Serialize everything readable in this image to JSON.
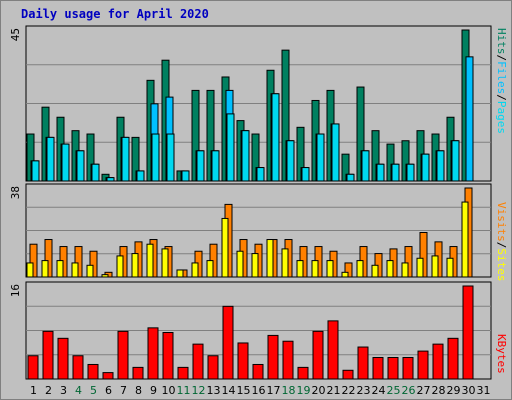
{
  "title": "Daily usage for April 2020",
  "colors": {
    "hits": "#008060",
    "files": "#00c0ff",
    "pages": "#00d8f0",
    "visits": "#ff8000",
    "sites": "#ffff00",
    "kbytes": "#ff0000",
    "weekend": "#006633",
    "weekday": "#000000"
  },
  "chart_data": [
    {
      "type": "bar",
      "panel": "hits-files-pages",
      "scale_max_label": "45",
      "ylim": [
        0,
        45
      ],
      "legend": [
        "Pages",
        "/",
        "Files",
        "/",
        "Hits"
      ],
      "categories": [
        "1",
        "2",
        "3",
        "4",
        "5",
        "6",
        "7",
        "8",
        "9",
        "10",
        "11",
        "12",
        "13",
        "14",
        "15",
        "16",
        "17",
        "18",
        "19",
        "20",
        "21",
        "22",
        "23",
        "24",
        "25",
        "26",
        "27",
        "28",
        "29",
        "30",
        "31"
      ],
      "weekend_days": [
        "4",
        "5",
        "11",
        "12",
        "18",
        "19",
        "25",
        "26"
      ],
      "series": [
        {
          "name": "Hits",
          "values": [
            14,
            22,
            19,
            15,
            14,
            2,
            19,
            13,
            30,
            36,
            3,
            27,
            27,
            31,
            18,
            14,
            33,
            39,
            16,
            24,
            27,
            8,
            28,
            15,
            11,
            12,
            15,
            14,
            19,
            45,
            0
          ]
        },
        {
          "name": "Files",
          "values": [
            6,
            13,
            11,
            9,
            5,
            1,
            13,
            3,
            23,
            25,
            3,
            9,
            9,
            27,
            15,
            4,
            26,
            12,
            4,
            14,
            17,
            2,
            9,
            5,
            5,
            5,
            8,
            9,
            12,
            37,
            0
          ]
        },
        {
          "name": "Pages",
          "values": [
            6,
            13,
            11,
            9,
            5,
            1,
            13,
            3,
            14,
            14,
            3,
            9,
            9,
            20,
            15,
            4,
            26,
            12,
            4,
            14,
            17,
            2,
            9,
            5,
            5,
            5,
            8,
            9,
            12,
            0,
            0
          ]
        }
      ]
    },
    {
      "type": "bar",
      "panel": "visits-sites",
      "scale_max_label": "38",
      "ylim": [
        0,
        38
      ],
      "legend": [
        "Sites",
        "/",
        "Visits"
      ],
      "categories": [
        "1",
        "2",
        "3",
        "4",
        "5",
        "6",
        "7",
        "8",
        "9",
        "10",
        "11",
        "12",
        "13",
        "14",
        "15",
        "16",
        "17",
        "18",
        "19",
        "20",
        "21",
        "22",
        "23",
        "24",
        "25",
        "26",
        "27",
        "28",
        "29",
        "30",
        "31"
      ],
      "series": [
        {
          "name": "Visits",
          "values": [
            14,
            16,
            13,
            13,
            11,
            2,
            13,
            15,
            16,
            13,
            3,
            11,
            14,
            31,
            16,
            14,
            16,
            16,
            13,
            13,
            11,
            6,
            13,
            10,
            12,
            13,
            19,
            15,
            13,
            38,
            0
          ]
        },
        {
          "name": "Sites",
          "values": [
            6,
            7,
            7,
            6,
            5,
            1,
            9,
            10,
            14,
            12,
            3,
            6,
            7,
            25,
            11,
            10,
            16,
            12,
            7,
            7,
            7,
            2,
            7,
            5,
            7,
            6,
            8,
            9,
            8,
            32,
            0
          ]
        }
      ]
    },
    {
      "type": "bar",
      "panel": "kbytes",
      "scale_max_label": "16",
      "ylim": [
        0,
        16
      ],
      "legend": [
        "KBytes"
      ],
      "categories": [
        "1",
        "2",
        "3",
        "4",
        "5",
        "6",
        "7",
        "8",
        "9",
        "10",
        "11",
        "12",
        "13",
        "14",
        "15",
        "16",
        "17",
        "18",
        "19",
        "20",
        "21",
        "22",
        "23",
        "24",
        "25",
        "26",
        "27",
        "28",
        "29",
        "30",
        "31"
      ],
      "series": [
        {
          "name": "KBytes",
          "values": [
            4.0,
            8.2,
            7.0,
            4.0,
            2.5,
            1.1,
            8.2,
            2.0,
            8.8,
            8.0,
            2.0,
            6.0,
            4.0,
            12.5,
            6.2,
            2.5,
            7.5,
            6.5,
            2.0,
            8.2,
            10.0,
            1.5,
            5.5,
            3.7,
            3.7,
            3.7,
            4.8,
            6.0,
            7.0,
            16.0,
            0
          ]
        }
      ]
    }
  ]
}
